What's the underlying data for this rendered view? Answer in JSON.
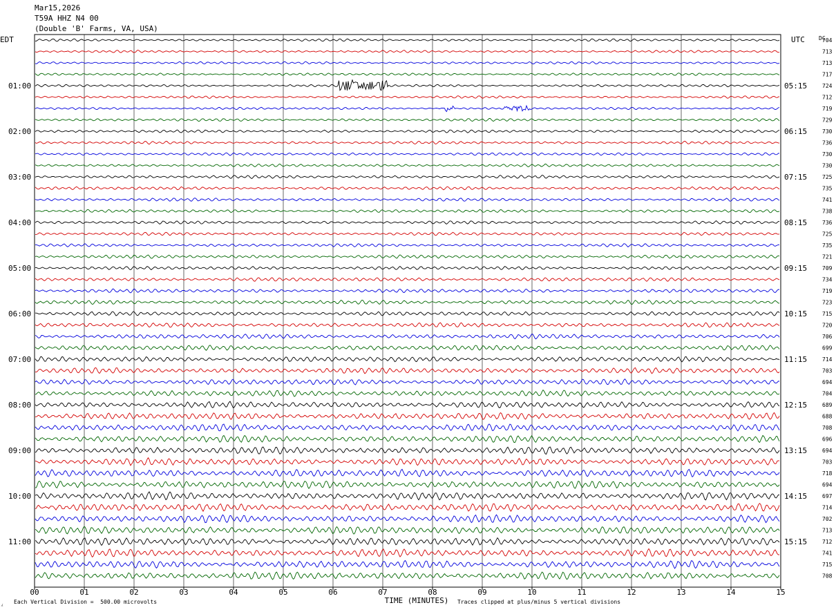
{
  "header": {
    "date": "Mar15,2026",
    "station": "T59A HHZ N4 00",
    "location": "(Double 'B' Farms, VA, USA)"
  },
  "left_tz": "EDT",
  "right_tz": "UTC",
  "dc_label": "DC",
  "footer": {
    "scale": "Each Vertical Division =  500.00 microvolts",
    "clip": "Traces clipped at plus/minus 5 vertical divisions",
    "mark": "⁁"
  },
  "colors": {
    "trace_cycle": [
      "#000000",
      "#d40000",
      "#0000dd",
      "#006600"
    ]
  },
  "chart_data": {
    "type": "line",
    "title": "",
    "xlabel": "TIME (MINUTES)",
    "x_ticks": [
      "00",
      "01",
      "02",
      "03",
      "04",
      "05",
      "06",
      "07",
      "08",
      "09",
      "10",
      "11",
      "12",
      "13",
      "14",
      "15"
    ],
    "xlim": [
      0,
      15
    ],
    "left_hour_labels": [
      "01:00",
      "02:00",
      "03:00",
      "04:00",
      "05:00",
      "06:00",
      "07:00",
      "08:00",
      "09:00",
      "10:00",
      "11:00"
    ],
    "right_hour_labels": [
      "05:15",
      "06:15",
      "07:15",
      "08:15",
      "09:15",
      "10:15",
      "11:15",
      "12:15",
      "13:15",
      "14:15",
      "15:15"
    ],
    "first_labeled_line": 4,
    "lines_per_hour": 4,
    "line_count": 48,
    "dc_offsets": [
      704,
      713,
      713,
      717,
      724,
      712,
      719,
      729,
      730,
      736,
      730,
      730,
      725,
      735,
      741,
      738,
      736,
      725,
      735,
      721,
      709,
      734,
      719,
      723,
      715,
      720,
      706,
      699,
      714,
      703,
      694,
      704,
      689,
      688,
      708,
      696,
      694,
      703,
      718,
      694,
      697,
      714,
      702,
      713,
      712,
      741,
      715,
      708
    ],
    "trace_amplitude": [
      0.4,
      0.4,
      0.4,
      0.4,
      0.4,
      0.4,
      0.4,
      0.45,
      0.45,
      0.45,
      0.45,
      0.45,
      0.5,
      0.5,
      0.5,
      0.5,
      0.5,
      0.5,
      0.5,
      0.55,
      0.55,
      0.6,
      0.6,
      0.65,
      0.65,
      0.7,
      0.75,
      0.8,
      0.85,
      0.9,
      0.9,
      0.95,
      1.0,
      1.05,
      1.1,
      1.1,
      1.15,
      1.15,
      1.2,
      1.2,
      1.2,
      1.2,
      1.2,
      1.2,
      1.2,
      1.2,
      1.2,
      1.2
    ],
    "events": [
      {
        "line": 4,
        "start_min": 6.1,
        "end_min": 7.1,
        "amp": 1.1
      },
      {
        "line": 6,
        "start_min": 8.25,
        "end_min": 8.45,
        "amp": 0.6
      },
      {
        "line": 6,
        "start_min": 9.4,
        "end_min": 9.95,
        "amp": 0.45
      }
    ]
  }
}
